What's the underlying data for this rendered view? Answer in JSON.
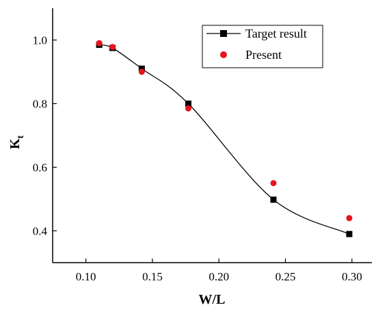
{
  "chart_data": {
    "type": "line",
    "xlabel": "W/L",
    "ylabel": "K",
    "ylabel_subscript": "t",
    "xlim": [
      0.075,
      0.315
    ],
    "ylim": [
      0.3,
      1.1
    ],
    "xticks": [
      0.1,
      0.15,
      0.2,
      0.25,
      0.3
    ],
    "xtick_labels": [
      "0.10",
      "0.15",
      "0.20",
      "0.25",
      "0.30"
    ],
    "yticks": [
      0.4,
      0.6,
      0.8,
      1.0
    ],
    "ytick_labels": [
      "0.4",
      "0.6",
      "0.8",
      "1.0"
    ],
    "grid": false,
    "legend_position": "top-right",
    "series": [
      {
        "name": "Target result",
        "style": "line-with-square-markers",
        "color": "#000000",
        "x": [
          0.11,
          0.12,
          0.142,
          0.177,
          0.241,
          0.298
        ],
        "y": [
          0.985,
          0.975,
          0.91,
          0.8,
          0.498,
          0.39
        ]
      },
      {
        "name": "Present",
        "style": "circle-markers",
        "color": "#e8141b",
        "x": [
          0.11,
          0.12,
          0.142,
          0.177,
          0.241,
          0.298
        ],
        "y": [
          0.99,
          0.978,
          0.9,
          0.785,
          0.55,
          0.44
        ]
      }
    ]
  }
}
